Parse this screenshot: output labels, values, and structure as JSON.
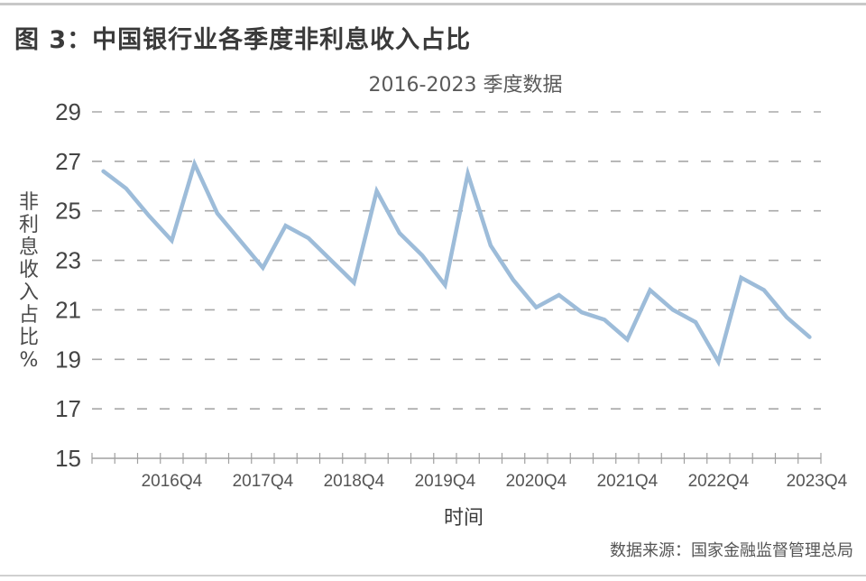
{
  "figure": {
    "title": "图 3：中国银行业各季度非利息收入占比",
    "source": "数据来源：国家金融监督管理总局"
  },
  "chart_data": {
    "type": "line",
    "title": "图 3：中国银行业各季度非利息收入占比",
    "subtitle": "2016-2023 季度数据",
    "xlabel": "时间",
    "ylabel": "非利息收入占比 %",
    "ylabel_chars": [
      "非",
      "利",
      "息",
      "收",
      "入",
      "占",
      "比",
      "%"
    ],
    "ylim": [
      15,
      29
    ],
    "yticks": [
      15,
      17,
      19,
      21,
      23,
      25,
      27,
      29
    ],
    "grid": "horizontal-dashed",
    "legend": "none",
    "line_color": "#9dbcd9",
    "grid_color": "#a8a8a8",
    "x": [
      "2016Q1",
      "2016Q2",
      "2016Q3",
      "2016Q4",
      "2017Q1",
      "2017Q2",
      "2017Q3",
      "2017Q4",
      "2018Q1",
      "2018Q2",
      "2018Q3",
      "2018Q4",
      "2019Q1",
      "2019Q2",
      "2019Q3",
      "2019Q4",
      "2020Q1",
      "2020Q2",
      "2020Q3",
      "2020Q4",
      "2021Q1",
      "2021Q2",
      "2021Q3",
      "2021Q4",
      "2022Q1",
      "2022Q2",
      "2022Q3",
      "2022Q4",
      "2023Q1",
      "2023Q2",
      "2023Q3",
      "2023Q4"
    ],
    "xtick_labels": [
      "2016Q4",
      "2017Q4",
      "2018Q4",
      "2019Q4",
      "2020Q4",
      "2021Q4",
      "2022Q4",
      "2023Q4"
    ],
    "series": [
      {
        "name": "非利息收入占比",
        "values": [
          26.6,
          25.9,
          24.8,
          23.8,
          26.9,
          24.9,
          23.8,
          22.7,
          24.4,
          23.9,
          23.0,
          22.1,
          25.8,
          24.1,
          23.2,
          22.0,
          26.5,
          23.6,
          22.2,
          21.1,
          21.6,
          20.9,
          20.6,
          19.8,
          21.8,
          21.0,
          20.5,
          18.9,
          22.3,
          21.8,
          20.7,
          19.9
        ]
      }
    ]
  }
}
